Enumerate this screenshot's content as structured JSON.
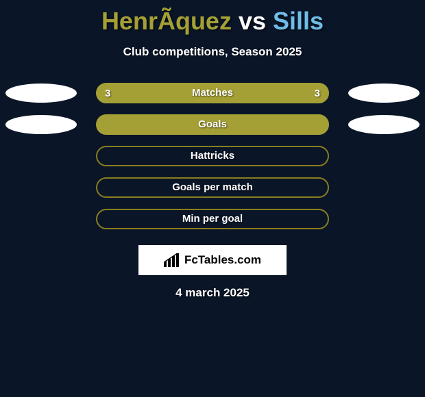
{
  "background_color": "#0a1628",
  "title": {
    "left": {
      "text": "HenrÃ­quez",
      "color": "#a5a035"
    },
    "vs": {
      "text": " vs ",
      "color": "#ffffff"
    },
    "right": {
      "text": "Sills",
      "color": "#6fbce8"
    }
  },
  "subtitle": "Club competitions, Season 2025",
  "avatar": {
    "bg": "#ffffff"
  },
  "pills": {
    "border_color": "#8a7e1e",
    "filled_bg": "#a5a035",
    "label_color": "#ffffff"
  },
  "rows": [
    {
      "label": "Matches",
      "left": "3",
      "right": "3",
      "filled": true,
      "show_avatars": true
    },
    {
      "label": "Goals",
      "left": "",
      "right": "",
      "filled": true,
      "show_avatars": true
    },
    {
      "label": "Hattricks",
      "left": "",
      "right": "",
      "filled": false,
      "show_avatars": false
    },
    {
      "label": "Goals per match",
      "left": "",
      "right": "",
      "filled": false,
      "show_avatars": false
    },
    {
      "label": "Min per goal",
      "left": "",
      "right": "",
      "filled": false,
      "show_avatars": false
    }
  ],
  "brand": {
    "icon_name": "barchart-icon",
    "text": "FcTables.com",
    "box_bg": "#ffffff",
    "text_color": "#000000"
  },
  "date": "4 march 2025"
}
